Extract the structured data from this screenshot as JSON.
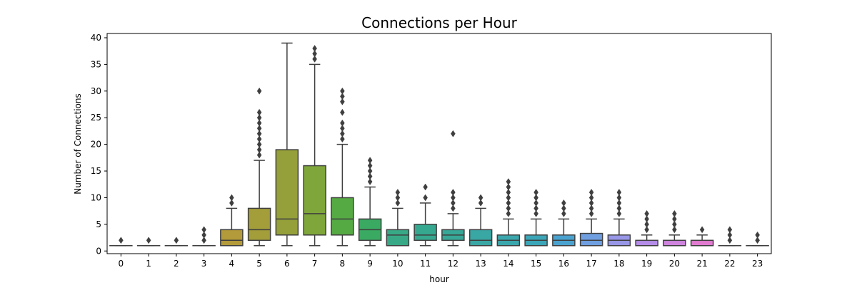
{
  "chart_data": {
    "type": "box",
    "title": "Connections per Hour",
    "xlabel": "hour",
    "ylabel": "Number of Connections",
    "ylim": [
      -0.5,
      40.8
    ],
    "yticks": [
      0,
      5,
      10,
      15,
      20,
      25,
      30,
      35,
      40
    ],
    "categories": [
      "0",
      "1",
      "2",
      "3",
      "4",
      "5",
      "6",
      "7",
      "8",
      "9",
      "10",
      "11",
      "12",
      "13",
      "14",
      "15",
      "16",
      "17",
      "18",
      "19",
      "20",
      "21",
      "22",
      "23"
    ],
    "boxes": [
      {
        "hour": "0",
        "whislo": 1,
        "q1": 1,
        "med": 1,
        "q3": 1,
        "whishi": 1,
        "fliers": [
          2
        ],
        "color": "#e8776c"
      },
      {
        "hour": "1",
        "whislo": 1,
        "q1": 1,
        "med": 1,
        "q3": 1,
        "whishi": 1,
        "fliers": [
          2
        ],
        "color": "#df7c4a"
      },
      {
        "hour": "2",
        "whislo": 1,
        "q1": 1,
        "med": 1,
        "q3": 1,
        "whishi": 1,
        "fliers": [
          2
        ],
        "color": "#d3853d"
      },
      {
        "hour": "3",
        "whislo": 1,
        "q1": 1,
        "med": 1,
        "q3": 1,
        "whishi": 1,
        "fliers": [
          2,
          3,
          4
        ],
        "color": "#c48b3a"
      },
      {
        "hour": "4",
        "whislo": 1,
        "q1": 1,
        "med": 2,
        "q3": 4,
        "whishi": 8,
        "fliers": [
          9,
          10
        ],
        "color": "#b39a3a"
      },
      {
        "hour": "5",
        "whislo": 1,
        "q1": 2,
        "med": 4,
        "q3": 8,
        "whishi": 17,
        "fliers": [
          18,
          19,
          20,
          21,
          22,
          23,
          24,
          25,
          26,
          30
        ],
        "color": "#a39d3a"
      },
      {
        "hour": "6",
        "whislo": 1,
        "q1": 3,
        "med": 6,
        "q3": 19,
        "whishi": 39,
        "fliers": [],
        "color": "#95a03a"
      },
      {
        "hour": "7",
        "whislo": 1,
        "q1": 3,
        "med": 7,
        "q3": 16,
        "whishi": 35,
        "fliers": [
          36,
          37,
          38
        ],
        "color": "#7fa63a"
      },
      {
        "hour": "8",
        "whislo": 1,
        "q1": 3,
        "med": 6,
        "q3": 10,
        "whishi": 20,
        "fliers": [
          21,
          22,
          23,
          24,
          26,
          28,
          29,
          30
        ],
        "color": "#56aa43"
      },
      {
        "hour": "9",
        "whislo": 1,
        "q1": 2,
        "med": 4,
        "q3": 6,
        "whishi": 12,
        "fliers": [
          13,
          14,
          15,
          16,
          17
        ],
        "color": "#3aaa62"
      },
      {
        "hour": "10",
        "whislo": 1,
        "q1": 1,
        "med": 3,
        "q3": 4,
        "whishi": 8,
        "fliers": [
          9,
          10,
          11
        ],
        "color": "#38a986"
      },
      {
        "hour": "11",
        "whislo": 1,
        "q1": 2,
        "med": 3,
        "q3": 5,
        "whishi": 9,
        "fliers": [
          10,
          12
        ],
        "color": "#36a88f"
      },
      {
        "hour": "12",
        "whislo": 1,
        "q1": 2,
        "med": 3,
        "q3": 4,
        "whishi": 7,
        "fliers": [
          8,
          9,
          10,
          11,
          22
        ],
        "color": "#37a797"
      },
      {
        "hour": "13",
        "whislo": 1,
        "q1": 1,
        "med": 2,
        "q3": 4,
        "whishi": 8,
        "fliers": [
          9,
          10
        ],
        "color": "#39a7a4"
      },
      {
        "hour": "14",
        "whislo": 1,
        "q1": 1,
        "med": 2,
        "q3": 3,
        "whishi": 6,
        "fliers": [
          7,
          8,
          9,
          10,
          11,
          12,
          13
        ],
        "color": "#3aa7ad"
      },
      {
        "hour": "15",
        "whislo": 1,
        "q1": 1,
        "med": 2,
        "q3": 3,
        "whishi": 6,
        "fliers": [
          7,
          8,
          9,
          10,
          11
        ],
        "color": "#3ba6b8"
      },
      {
        "hour": "16",
        "whislo": 1,
        "q1": 1,
        "med": 2,
        "q3": 3,
        "whishi": 6,
        "fliers": [
          7,
          8,
          9
        ],
        "color": "#4aa3cf"
      },
      {
        "hour": "17",
        "whislo": 1,
        "q1": 1,
        "med": 2,
        "q3": 3.3,
        "whishi": 6,
        "fliers": [
          7,
          8,
          9,
          10,
          11
        ],
        "color": "#6f9fe0"
      },
      {
        "hour": "18",
        "whislo": 1,
        "q1": 1,
        "med": 2,
        "q3": 3,
        "whishi": 6,
        "fliers": [
          7,
          8,
          9,
          10,
          11
        ],
        "color": "#9896e6"
      },
      {
        "hour": "19",
        "whislo": 1,
        "q1": 1,
        "med": 1,
        "q3": 2,
        "whishi": 3,
        "fliers": [
          4,
          5,
          6,
          7
        ],
        "color": "#b58ce8"
      },
      {
        "hour": "20",
        "whislo": 1,
        "q1": 1,
        "med": 1,
        "q3": 2,
        "whishi": 3,
        "fliers": [
          4,
          5,
          6,
          7
        ],
        "color": "#cf84de"
      },
      {
        "hour": "21",
        "whislo": 1,
        "q1": 1,
        "med": 1,
        "q3": 2,
        "whishi": 3,
        "fliers": [
          4
        ],
        "color": "#e07bd0"
      },
      {
        "hour": "22",
        "whislo": 1,
        "q1": 1,
        "med": 1,
        "q3": 1,
        "whishi": 1,
        "fliers": [
          2,
          3,
          4
        ],
        "color": "#e47bb8"
      },
      {
        "hour": "23",
        "whislo": 1,
        "q1": 1,
        "med": 1,
        "q3": 1,
        "whishi": 1,
        "fliers": [
          2,
          3
        ],
        "color": "#e678a3"
      }
    ],
    "line_color": "#3f3f3f",
    "grid": false,
    "legend": "none"
  }
}
